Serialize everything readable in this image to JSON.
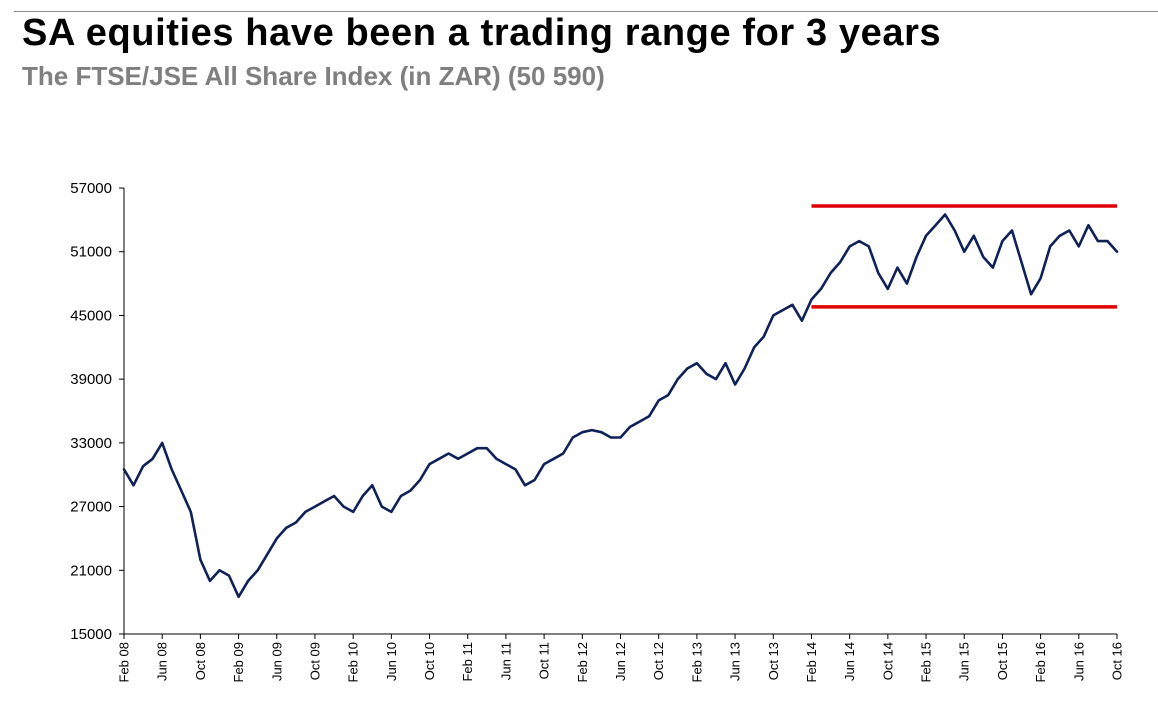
{
  "title": "SA equities have been a trading range for 3 years",
  "subtitle": "The FTSE/JSE All Share Index (in ZAR) (50 590)",
  "chart_data": {
    "type": "line",
    "title": "SA equities have been a trading range for 3 years",
    "subtitle": "The FTSE/JSE All Share Index (in ZAR) (50 590)",
    "xlabel": "",
    "ylabel": "",
    "ylim": [
      15000,
      57000
    ],
    "yticks": [
      15000,
      21000,
      27000,
      33000,
      39000,
      45000,
      51000,
      57000
    ],
    "ytick_labels": [
      "15000",
      "21000",
      "27000",
      "33000",
      "39000",
      "45000",
      "51000",
      "57000"
    ],
    "xlim": [
      "2008-02",
      "2016-10"
    ],
    "xticks": [
      "2008-02",
      "2008-06",
      "2008-10",
      "2009-02",
      "2009-06",
      "2009-10",
      "2010-02",
      "2010-06",
      "2010-10",
      "2011-02",
      "2011-06",
      "2011-10",
      "2012-02",
      "2012-06",
      "2012-10",
      "2013-02",
      "2013-06",
      "2013-10",
      "2014-02",
      "2014-06",
      "2014-10",
      "2015-02",
      "2015-06",
      "2015-10",
      "2016-02",
      "2016-06",
      "2016-10"
    ],
    "xtick_labels": [
      "Feb 08",
      "Jun 08",
      "Oct 08",
      "Feb 09",
      "Jun 09",
      "Oct 09",
      "Feb 10",
      "Jun 10",
      "Oct 10",
      "Feb 11",
      "Jun 11",
      "Oct 11",
      "Feb 12",
      "Jun 12",
      "Oct 12",
      "Feb 13",
      "Jun 13",
      "Oct 13",
      "Feb 14",
      "Jun 14",
      "Oct 14",
      "Feb 15",
      "Jun 15",
      "Oct 15",
      "Feb 16",
      "Jun 16",
      "Oct 16"
    ],
    "grid": false,
    "legend": "none",
    "series": [
      {
        "color": "#0f2157",
        "x": [
          "2008-02",
          "2008-03",
          "2008-04",
          "2008-05",
          "2008-06",
          "2008-07",
          "2008-08",
          "2008-09",
          "2008-10",
          "2008-11",
          "2008-12",
          "2009-01",
          "2009-02",
          "2009-03",
          "2009-04",
          "2009-05",
          "2009-06",
          "2009-07",
          "2009-08",
          "2009-09",
          "2009-10",
          "2009-11",
          "2009-12",
          "2010-01",
          "2010-02",
          "2010-03",
          "2010-04",
          "2010-05",
          "2010-06",
          "2010-07",
          "2010-08",
          "2010-09",
          "2010-10",
          "2010-11",
          "2010-12",
          "2011-01",
          "2011-02",
          "2011-03",
          "2011-04",
          "2011-05",
          "2011-06",
          "2011-07",
          "2011-08",
          "2011-09",
          "2011-10",
          "2011-11",
          "2011-12",
          "2012-01",
          "2012-02",
          "2012-03",
          "2012-04",
          "2012-05",
          "2012-06",
          "2012-07",
          "2012-08",
          "2012-09",
          "2012-10",
          "2012-11",
          "2012-12",
          "2013-01",
          "2013-02",
          "2013-03",
          "2013-04",
          "2013-05",
          "2013-06",
          "2013-07",
          "2013-08",
          "2013-09",
          "2013-10",
          "2013-11",
          "2013-12",
          "2014-01",
          "2014-02",
          "2014-03",
          "2014-04",
          "2014-05",
          "2014-06",
          "2014-07",
          "2014-08",
          "2014-09",
          "2014-10",
          "2014-11",
          "2014-12",
          "2015-01",
          "2015-02",
          "2015-03",
          "2015-04",
          "2015-05",
          "2015-06",
          "2015-07",
          "2015-08",
          "2015-09",
          "2015-10",
          "2015-11",
          "2015-12",
          "2016-01",
          "2016-02",
          "2016-03",
          "2016-04",
          "2016-05",
          "2016-06",
          "2016-07",
          "2016-08",
          "2016-09",
          "2016-10"
        ],
        "values": [
          30500,
          29000,
          30800,
          31500,
          33000,
          30500,
          28500,
          26500,
          22000,
          20000,
          21000,
          20500,
          18500,
          20000,
          21000,
          22500,
          24000,
          25000,
          25500,
          26500,
          27000,
          27500,
          28000,
          27000,
          26500,
          28000,
          29000,
          27000,
          26500,
          28000,
          28500,
          29500,
          31000,
          31500,
          32000,
          31500,
          32000,
          32500,
          32500,
          31500,
          31000,
          30500,
          29000,
          29500,
          31000,
          31500,
          32000,
          33500,
          34000,
          34200,
          34000,
          33500,
          33500,
          34500,
          35000,
          35500,
          37000,
          37500,
          39000,
          40000,
          40500,
          39500,
          39000,
          40500,
          38500,
          40000,
          42000,
          43000,
          45000,
          45500,
          46000,
          44500,
          46500,
          47500,
          49000,
          50000,
          51500,
          52000,
          51500,
          49000,
          47500,
          49500,
          48000,
          50500,
          52500,
          53500,
          54500,
          53000,
          51000,
          52500,
          50500,
          49500,
          52000,
          53000,
          50000,
          47000,
          48500,
          51500,
          52500,
          53000,
          51500,
          53500,
          52000,
          52000,
          51000
        ]
      }
    ],
    "annotations": [
      {
        "type": "hline",
        "y": 55300,
        "x_start": "2014-02",
        "x_end": "2016-10",
        "color": "#e00000"
      },
      {
        "type": "hline",
        "y": 45800,
        "x_start": "2014-02",
        "x_end": "2016-10",
        "color": "#e00000"
      }
    ]
  }
}
